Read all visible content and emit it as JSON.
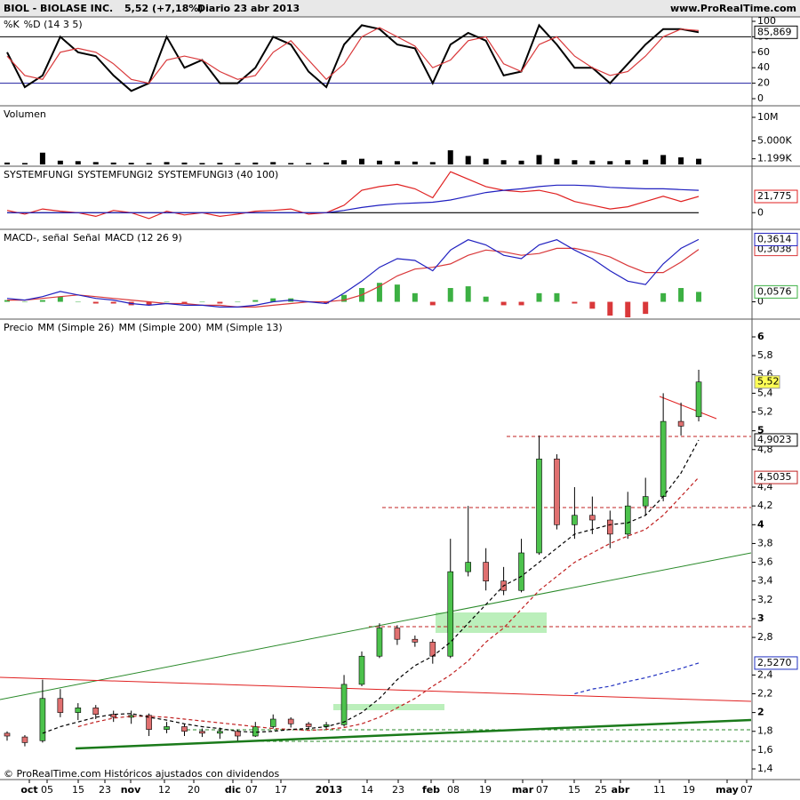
{
  "header": {
    "symbol": "BIOL - BIOLASE INC.",
    "quote": "5,52 (+7,18%)",
    "period": "Diario  23 abr 2013",
    "site": "www.ProRealTime.com"
  },
  "footer": "© ProRealTime.com Históricos ajustados con dividendos",
  "x_axis": {
    "labels": [
      "oct",
      "05",
      "15",
      "23",
      "nov",
      "12",
      "20",
      "dic",
      "07",
      "17",
      "2013",
      "14",
      "23",
      "feb",
      "08",
      "19",
      "mar",
      "07",
      "15",
      "25",
      "abr",
      "11",
      "19",
      "may",
      "07"
    ]
  },
  "chart_data": [
    {
      "type": "line",
      "ylim": [
        0,
        100
      ],
      "yticks": [
        0,
        20,
        40,
        60,
        80,
        100
      ],
      "levels": [
        20,
        80
      ],
      "series": [
        {
          "name": "%K",
          "color": "#000000",
          "values": [
            60,
            15,
            30,
            80,
            60,
            55,
            30,
            10,
            20,
            80,
            40,
            50,
            20,
            20,
            40,
            80,
            70,
            35,
            15,
            70,
            95,
            90,
            70,
            65,
            20,
            70,
            85,
            75,
            30,
            35,
            95,
            70,
            40,
            40,
            20,
            45,
            70,
            90,
            90,
            85.869
          ],
          "last_label": "85,869"
        },
        {
          "name": "%D (14 3 5)",
          "color": "#d9383a",
          "values": [
            55,
            30,
            25,
            60,
            65,
            60,
            45,
            25,
            20,
            50,
            55,
            50,
            35,
            25,
            30,
            60,
            75,
            50,
            25,
            45,
            80,
            92,
            80,
            68,
            40,
            50,
            75,
            80,
            45,
            35,
            70,
            80,
            55,
            40,
            30,
            35,
            55,
            80,
            90,
            88
          ]
        }
      ]
    },
    {
      "type": "bar",
      "title": "Volumen",
      "ylim": [
        0,
        10000
      ],
      "yticks": [
        {
          "value": 10000,
          "label": "10M"
        },
        {
          "value": 5000,
          "label": "5.000K"
        },
        {
          "value": 1199,
          "label": "1.199K"
        }
      ],
      "series": [
        {
          "color": "#000000",
          "values": [
            400,
            300,
            2500,
            800,
            700,
            500,
            400,
            350,
            300,
            500,
            400,
            300,
            350,
            300,
            400,
            500,
            300,
            300,
            400,
            900,
            1200,
            800,
            700,
            600,
            500,
            3000,
            1800,
            1200,
            900,
            800,
            2000,
            1200,
            900,
            800,
            700,
            900,
            1000,
            2000,
            1500,
            1199
          ]
        }
      ]
    },
    {
      "type": "line",
      "ylim": [
        -20,
        60
      ],
      "yticks": [
        0
      ],
      "series": [
        {
          "name": "SYSTEMFUNGI",
          "color": "#000000",
          "values": [
            0,
            0,
            0,
            0,
            0,
            0,
            0,
            0,
            0,
            0,
            0,
            0,
            0,
            0,
            0,
            0,
            0,
            0,
            0,
            0,
            0,
            0,
            0,
            0,
            0,
            0,
            0,
            0,
            0,
            0,
            0,
            0,
            0,
            0,
            0,
            0,
            0,
            0,
            0,
            0
          ]
        },
        {
          "name": "SYSTEMFUNGI2",
          "color": "#e02020",
          "values": [
            3,
            -2,
            5,
            2,
            0,
            -5,
            3,
            0,
            -8,
            2,
            -3,
            0,
            -5,
            -2,
            2,
            3,
            5,
            -2,
            0,
            10,
            30,
            35,
            38,
            32,
            20,
            55,
            45,
            35,
            30,
            28,
            30,
            25,
            15,
            10,
            5,
            8,
            15,
            22,
            15,
            21.775
          ],
          "last_label": "21,775"
        },
        {
          "name": "SYSTEMFUNGI3 (40 100)",
          "color": "#2020c0",
          "values": [
            0,
            0,
            0,
            0,
            0,
            0,
            0,
            0,
            0,
            0,
            0,
            0,
            0,
            0,
            0,
            0,
            0,
            0,
            0,
            3,
            7,
            10,
            12,
            13,
            14,
            17,
            22,
            27,
            30,
            32,
            35,
            37,
            37,
            36,
            34,
            33,
            32,
            32,
            31,
            30
          ]
        }
      ]
    },
    {
      "type": "line",
      "ylim": [
        -0.09,
        0.41
      ],
      "yticks": [
        0
      ],
      "series": [
        {
          "name": "MACD-, señal",
          "kind": "bar",
          "color": "#3cb043",
          "negative_color": "#d9383a",
          "values": [
            0.01,
            0,
            0.01,
            0.03,
            0,
            -0.01,
            -0.01,
            -0.02,
            -0.02,
            0,
            -0.01,
            0,
            -0.01,
            0,
            0.01,
            0.02,
            0.02,
            0,
            -0.01,
            0.04,
            0.08,
            0.11,
            0.1,
            0.05,
            -0.02,
            0.08,
            0.09,
            0.03,
            -0.02,
            -0.02,
            0.05,
            0.05,
            -0.01,
            -0.04,
            -0.08,
            -0.09,
            -0.07,
            0.05,
            0.08,
            0.0576
          ],
          "last_label": "0,0576"
        },
        {
          "name": "Señal",
          "color": "#d9383a",
          "values": [
            0.01,
            0.01,
            0.02,
            0.03,
            0.04,
            0.03,
            0.02,
            0.01,
            0,
            -0.01,
            -0.01,
            -0.02,
            -0.02,
            -0.03,
            -0.03,
            -0.02,
            -0.01,
            0,
            0,
            0.01,
            0.04,
            0.09,
            0.15,
            0.19,
            0.2,
            0.22,
            0.27,
            0.3,
            0.29,
            0.27,
            0.28,
            0.31,
            0.31,
            0.29,
            0.26,
            0.21,
            0.17,
            0.17,
            0.23,
            0.3038
          ],
          "last_label": "0,3038"
        },
        {
          "name": "MACD (12 26 9)",
          "color": "#2020c0",
          "values": [
            0.02,
            0.01,
            0.03,
            0.06,
            0.04,
            0.02,
            0.01,
            -0.01,
            -0.02,
            -0.01,
            -0.02,
            -0.02,
            -0.03,
            -0.03,
            -0.02,
            0,
            0.01,
            0,
            -0.01,
            0.05,
            0.12,
            0.2,
            0.25,
            0.24,
            0.18,
            0.3,
            0.36,
            0.33,
            0.27,
            0.25,
            0.33,
            0.36,
            0.3,
            0.25,
            0.18,
            0.12,
            0.1,
            0.22,
            0.31,
            0.3614
          ],
          "last_label": "0,3614"
        }
      ]
    },
    {
      "type": "candlestick",
      "title": "Precio",
      "ylim": [
        1.4,
        6
      ],
      "yticks": [
        {
          "value": 1.4,
          "label": "1,4"
        },
        {
          "value": 1.6,
          "label": "1,6"
        },
        {
          "value": 1.8,
          "label": "1,8"
        },
        2,
        {
          "value": 2.2,
          "label": "2,2"
        },
        {
          "value": 2.4,
          "label": "2,4"
        },
        {
          "value": 2.8,
          "label": "2,8"
        },
        3,
        {
          "value": 3.2,
          "label": "3,2"
        },
        {
          "value": 3.4,
          "label": "3,4"
        },
        {
          "value": 3.6,
          "label": "3,6"
        },
        {
          "value": 3.8,
          "label": "3,8"
        },
        4,
        {
          "value": 4.2,
          "label": "4,2"
        },
        {
          "value": 4.4,
          "label": "4,4"
        },
        {
          "value": 4.8,
          "label": "4,8"
        },
        5,
        {
          "value": 5.2,
          "label": "5,2"
        },
        {
          "value": 5.4,
          "label": "5,4"
        },
        {
          "value": 5.6,
          "label": "5,6"
        },
        {
          "value": 5.8,
          "label": "5,8"
        },
        6
      ],
      "candles": {
        "up_color": "#4cc24c",
        "down_color": "#e07070",
        "last_label": "5,52",
        "open": [
          1.78,
          1.74,
          1.7,
          2.15,
          2,
          2.05,
          1.98,
          1.95,
          1.97,
          1.82,
          1.85,
          1.8,
          1.78,
          1.8,
          1.75,
          1.85,
          1.93,
          1.88,
          1.85,
          1.87,
          2.3,
          2.6,
          2.9,
          2.78,
          2.75,
          2.6,
          3.5,
          3.6,
          3.4,
          3.3,
          3.7,
          4.7,
          4,
          4.1,
          4.05,
          3.9,
          4.2,
          4.3,
          5.1,
          5.15
        ],
        "high": [
          1.8,
          1.76,
          2.35,
          2.25,
          2.1,
          2.08,
          2.02,
          2.02,
          1.99,
          1.9,
          1.88,
          1.83,
          1.84,
          1.82,
          1.9,
          1.98,
          1.95,
          1.9,
          1.9,
          2.4,
          2.65,
          2.95,
          2.93,
          2.82,
          2.78,
          3.85,
          4.2,
          3.75,
          3.55,
          3.85,
          4.95,
          4.75,
          4.4,
          4.3,
          4.15,
          4.35,
          4.5,
          5.4,
          5.3,
          5.65
        ],
        "low": [
          1.7,
          1.64,
          1.68,
          1.95,
          1.92,
          1.93,
          1.9,
          1.88,
          1.75,
          1.78,
          1.75,
          1.74,
          1.72,
          1.7,
          1.74,
          1.83,
          1.84,
          1.82,
          1.82,
          1.85,
          2.28,
          2.58,
          2.72,
          2.7,
          2.52,
          2.58,
          3.45,
          3.3,
          3.25,
          3.28,
          3.68,
          3.95,
          3.85,
          3.9,
          3.75,
          3.85,
          4.1,
          4.25,
          4.95,
          5.1
        ],
        "close": [
          1.75,
          1.68,
          2.15,
          2,
          2.05,
          1.98,
          1.95,
          1.97,
          1.82,
          1.85,
          1.8,
          1.78,
          1.8,
          1.75,
          1.85,
          1.93,
          1.88,
          1.85,
          1.87,
          2.3,
          2.6,
          2.9,
          2.78,
          2.75,
          2.6,
          3.5,
          3.6,
          3.4,
          3.3,
          3.7,
          4.7,
          4,
          4.1,
          4.05,
          3.9,
          4.2,
          4.3,
          5.1,
          5.05,
          5.52
        ]
      },
      "series": [
        {
          "name": "MM (Simple 26)",
          "color": "#c02020",
          "dash": true,
          "values": [
            null,
            null,
            null,
            null,
            1.85,
            1.9,
            1.94,
            1.96,
            1.96,
            1.95,
            1.93,
            1.91,
            1.89,
            1.87,
            1.85,
            1.83,
            1.82,
            1.81,
            1.82,
            1.84,
            1.88,
            1.95,
            2.05,
            2.15,
            2.28,
            2.4,
            2.55,
            2.75,
            2.9,
            3.1,
            3.3,
            3.45,
            3.6,
            3.7,
            3.8,
            3.88,
            3.95,
            4.1,
            4.3,
            4.5035
          ],
          "last_label": "4,5035"
        },
        {
          "name": "MM (Simple 200)",
          "color": "#2030c0",
          "dash": true,
          "values": [
            null,
            null,
            null,
            null,
            null,
            null,
            null,
            null,
            null,
            null,
            null,
            null,
            null,
            null,
            null,
            null,
            null,
            null,
            null,
            null,
            null,
            null,
            null,
            null,
            null,
            null,
            null,
            null,
            null,
            null,
            null,
            null,
            2.2,
            2.25,
            2.28,
            2.33,
            2.37,
            2.42,
            2.47,
            2.527
          ],
          "last_label": "2,5270"
        },
        {
          "name": "MM (Simple 13)",
          "color": "#000000",
          "dash": true,
          "values": [
            null,
            null,
            1.78,
            1.85,
            1.9,
            1.95,
            1.98,
            1.99,
            1.95,
            1.92,
            1.88,
            1.85,
            1.83,
            1.8,
            1.79,
            1.8,
            1.82,
            1.83,
            1.85,
            1.9,
            2,
            2.15,
            2.35,
            2.5,
            2.6,
            2.75,
            2.95,
            3.15,
            3.35,
            3.45,
            3.6,
            3.75,
            3.9,
            3.95,
            4,
            4.02,
            4.1,
            4.3,
            4.55,
            4.9023
          ],
          "last_label": "4,9023"
        }
      ]
    }
  ]
}
